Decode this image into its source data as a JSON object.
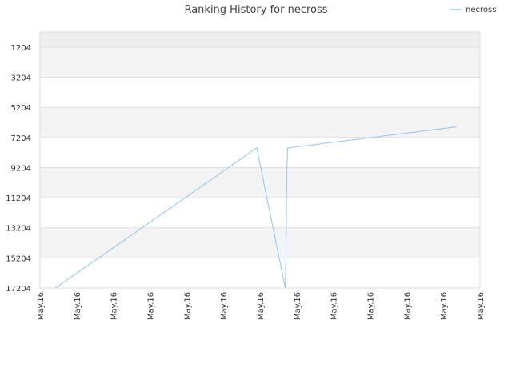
{
  "chart_data": {
    "type": "line",
    "title": "Ranking History for necross",
    "y_inverted": true,
    "ylim": [
      204,
      17204
    ],
    "y_ticks": [
      "1204",
      "3204",
      "5204",
      "7204",
      "9204",
      "11204",
      "13204",
      "15204",
      "17204"
    ],
    "x_tick_labels": [
      "May.16",
      "May.16",
      "May.16",
      "May.16",
      "May.16",
      "May.16",
      "May.16",
      "May.16",
      "May.16",
      "May.16",
      "May.16",
      "May.16",
      "May.16"
    ],
    "xlim": [
      0,
      12
    ],
    "grid": true,
    "legend_position": "top-right",
    "series": [
      {
        "name": "necross",
        "color": "#90c4f0",
        "x": [
          0.42,
          5.91,
          6.69,
          6.71,
          6.73,
          6.75,
          11.36
        ],
        "y": [
          17204,
          7900,
          17204,
          15000,
          9900,
          7900,
          6500
        ]
      }
    ]
  }
}
